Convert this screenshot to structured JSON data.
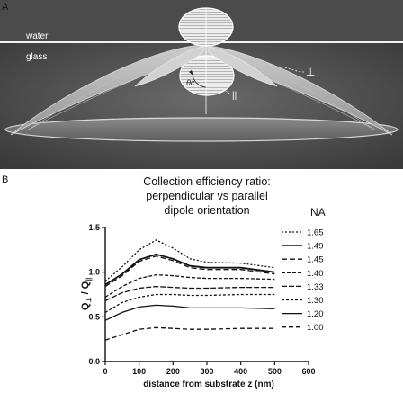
{
  "panel_a": {
    "letter": "A",
    "label_water": "water",
    "label_glass": "glass",
    "label_theta": "θc",
    "label_perp": "⊥",
    "label_par": "||"
  },
  "panel_b": {
    "letter": "B"
  },
  "chart_data": {
    "type": "line",
    "title_lines": [
      "Collection efficiency ratio:",
      "perpendicular vs parallel",
      "dipole orientation"
    ],
    "xlabel": "distance from substrate z (nm)",
    "ylabel_main": "Q",
    "ylabel_sub1": "⊥",
    "ylabel_sep": " / Q",
    "ylabel_sub2": "||",
    "xlim": [
      0,
      600
    ],
    "ylim": [
      0,
      1.5
    ],
    "xticks": [
      0,
      100,
      200,
      300,
      400,
      500,
      600
    ],
    "yticks": [
      0.0,
      0.5,
      1.0,
      1.5
    ],
    "ytick_labels": [
      "0.0",
      "0.5",
      "1.0",
      "1.5"
    ],
    "legend_title": "NA",
    "legend_position": "right",
    "series": [
      {
        "name": "1.65",
        "dash": "2,2",
        "x": [
          0,
          50,
          100,
          150,
          200,
          250,
          300,
          400,
          500
        ],
        "values": [
          0.9,
          1.06,
          1.25,
          1.36,
          1.27,
          1.15,
          1.11,
          1.1,
          1.05
        ]
      },
      {
        "name": "1.49",
        "dash": "",
        "x": [
          0,
          50,
          100,
          150,
          200,
          250,
          300,
          400,
          500
        ],
        "values": [
          0.86,
          0.98,
          1.14,
          1.2,
          1.15,
          1.07,
          1.05,
          1.05,
          1.0
        ]
      },
      {
        "name": "1.45",
        "dash": "6,3",
        "x": [
          0,
          50,
          100,
          150,
          200,
          250,
          300,
          400,
          500
        ],
        "values": [
          0.84,
          0.96,
          1.12,
          1.18,
          1.13,
          1.05,
          1.03,
          1.03,
          0.98
        ]
      },
      {
        "name": "1.40",
        "dash": "4,2",
        "x": [
          0,
          50,
          100,
          150,
          200,
          250,
          300,
          400,
          500
        ],
        "values": [
          0.72,
          0.84,
          0.93,
          0.97,
          0.96,
          0.94,
          0.93,
          0.93,
          0.92
        ]
      },
      {
        "name": "1.33",
        "dash": "6,2",
        "x": [
          0,
          50,
          100,
          150,
          200,
          250,
          300,
          400,
          500
        ],
        "values": [
          0.68,
          0.77,
          0.82,
          0.84,
          0.83,
          0.82,
          0.82,
          0.83,
          0.83
        ]
      },
      {
        "name": "1.30",
        "dash": "3,2",
        "x": [
          0,
          50,
          100,
          150,
          200,
          250,
          300,
          400,
          500
        ],
        "values": [
          0.55,
          0.66,
          0.72,
          0.75,
          0.75,
          0.74,
          0.74,
          0.75,
          0.75
        ]
      },
      {
        "name": "1.20",
        "dash": "",
        "x": [
          0,
          50,
          100,
          150,
          200,
          250,
          300,
          400,
          500
        ],
        "values": [
          0.46,
          0.55,
          0.61,
          0.63,
          0.62,
          0.6,
          0.6,
          0.6,
          0.59
        ]
      },
      {
        "name": "1.00",
        "dash": "5,3",
        "x": [
          0,
          50,
          100,
          150,
          200,
          250,
          300,
          400,
          500
        ],
        "values": [
          0.24,
          0.3,
          0.36,
          0.38,
          0.37,
          0.36,
          0.36,
          0.37,
          0.37
        ]
      }
    ]
  }
}
